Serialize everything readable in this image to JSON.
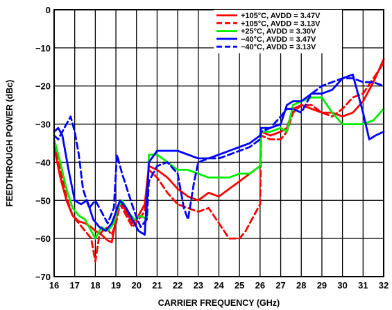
{
  "chart_data": {
    "type": "line",
    "xlabel": "CARRIER FREQUENCY (GHz)",
    "ylabel": "FEEDTHROUGH POWER (dBc)",
    "xlim": [
      16,
      32
    ],
    "ylim": [
      -70,
      0
    ],
    "xticks": [
      "16",
      "17",
      "18",
      "19",
      "20",
      "21",
      "22",
      "23",
      "24",
      "25",
      "26",
      "27",
      "28",
      "29",
      "30",
      "31",
      "32"
    ],
    "yticks": [
      "0",
      "−10",
      "−20",
      "−30",
      "−40",
      "−50",
      "−60",
      "−70"
    ],
    "grid": true,
    "legend_position": "top-right",
    "series": [
      {
        "name": "+105°C, AVDD = 3.47V",
        "color": "#ff0000",
        "dash": "solid",
        "points": [
          [
            16,
            -36
          ],
          [
            16.3,
            -44
          ],
          [
            16.6,
            -50
          ],
          [
            16.9,
            -54
          ],
          [
            17.2,
            -55.5
          ],
          [
            17.5,
            -56
          ],
          [
            17.8,
            -57
          ],
          [
            18,
            -58
          ],
          [
            18.3,
            -59
          ],
          [
            18.6,
            -60.5
          ],
          [
            18.8,
            -61
          ],
          [
            19,
            -55
          ],
          [
            19.2,
            -50
          ],
          [
            19.5,
            -53
          ],
          [
            19.8,
            -56
          ],
          [
            20.1,
            -54
          ],
          [
            20.4,
            -51
          ],
          [
            20.6,
            -41
          ],
          [
            21,
            -42
          ],
          [
            21.5,
            -44
          ],
          [
            22,
            -47
          ],
          [
            22.5,
            -49
          ],
          [
            23,
            -50
          ],
          [
            23.5,
            -48
          ],
          [
            24,
            -49
          ],
          [
            24.5,
            -47
          ],
          [
            25,
            -45
          ],
          [
            25.5,
            -43
          ],
          [
            26,
            -41
          ],
          [
            26.05,
            -32
          ],
          [
            26.5,
            -33
          ],
          [
            27,
            -32
          ],
          [
            27.3,
            -31
          ],
          [
            27.6,
            -26
          ],
          [
            28,
            -25
          ],
          [
            28.5,
            -26
          ],
          [
            29,
            -27
          ],
          [
            29.5,
            -27
          ],
          [
            30,
            -28
          ],
          [
            30.5,
            -27
          ],
          [
            31,
            -24
          ],
          [
            31.5,
            -19
          ],
          [
            32,
            -13
          ]
        ]
      },
      {
        "name": "+105°C, AVDD = 3.13V",
        "color": "#ff0000",
        "dash": "dashed",
        "points": [
          [
            16,
            -35
          ],
          [
            16.3,
            -42
          ],
          [
            16.6,
            -49
          ],
          [
            16.9,
            -54
          ],
          [
            17.2,
            -56
          ],
          [
            17.5,
            -58
          ],
          [
            17.8,
            -60
          ],
          [
            18,
            -66
          ],
          [
            18.2,
            -59
          ],
          [
            18.5,
            -57
          ],
          [
            18.8,
            -59
          ],
          [
            19,
            -56
          ],
          [
            19.2,
            -51
          ],
          [
            19.5,
            -54
          ],
          [
            19.8,
            -57
          ],
          [
            20.1,
            -55
          ],
          [
            20.4,
            -53
          ],
          [
            20.6,
            -42
          ],
          [
            21,
            -44
          ],
          [
            21.5,
            -48
          ],
          [
            22,
            -51
          ],
          [
            22.5,
            -52
          ],
          [
            23,
            -53
          ],
          [
            23.5,
            -52
          ],
          [
            24,
            -56
          ],
          [
            24.5,
            -60
          ],
          [
            25,
            -60
          ],
          [
            25.3,
            -58
          ],
          [
            25.6,
            -55
          ],
          [
            26,
            -51
          ],
          [
            26.05,
            -33
          ],
          [
            26.5,
            -34
          ],
          [
            27,
            -34
          ],
          [
            27.3,
            -32
          ],
          [
            27.6,
            -27
          ],
          [
            28,
            -25
          ],
          [
            28.5,
            -25
          ],
          [
            29,
            -27
          ],
          [
            29.5,
            -28
          ],
          [
            30,
            -26
          ],
          [
            30.5,
            -23
          ],
          [
            31,
            -22
          ],
          [
            31.5,
            -18
          ],
          [
            32,
            -14
          ]
        ]
      },
      {
        "name": "+25°C, AVDD = 3.30V",
        "color": "#00ee00",
        "dash": "solid",
        "points": [
          [
            16,
            -34
          ],
          [
            16.3,
            -40
          ],
          [
            16.6,
            -47
          ],
          [
            16.9,
            -52
          ],
          [
            17.2,
            -54
          ],
          [
            17.5,
            -55
          ],
          [
            17.8,
            -58
          ],
          [
            18,
            -60
          ],
          [
            18.3,
            -57
          ],
          [
            18.6,
            -58
          ],
          [
            18.9,
            -56
          ],
          [
            19.1,
            -52
          ],
          [
            19.3,
            -50
          ],
          [
            19.6,
            -53
          ],
          [
            19.9,
            -55
          ],
          [
            20.2,
            -54
          ],
          [
            20.5,
            -55
          ],
          [
            20.6,
            -38
          ],
          [
            21,
            -38
          ],
          [
            21.5,
            -40
          ],
          [
            22,
            -42
          ],
          [
            22.5,
            -42
          ],
          [
            23,
            -43
          ],
          [
            23.5,
            -44
          ],
          [
            24,
            -44
          ],
          [
            24.5,
            -44
          ],
          [
            25,
            -43
          ],
          [
            25.5,
            -43
          ],
          [
            26,
            -41
          ],
          [
            26.05,
            -32
          ],
          [
            26.5,
            -32
          ],
          [
            27,
            -31
          ],
          [
            27.3,
            -32
          ],
          [
            27.6,
            -25
          ],
          [
            28,
            -24
          ],
          [
            28.5,
            -23
          ],
          [
            29,
            -23
          ],
          [
            29.5,
            -27
          ],
          [
            30,
            -30
          ],
          [
            30.5,
            -30
          ],
          [
            31,
            -30
          ],
          [
            31.5,
            -29
          ],
          [
            32,
            -26
          ]
        ]
      },
      {
        "name": "−40°C, AVDD = 3.47V",
        "color": "#0000ff",
        "dash": "solid",
        "points": [
          [
            16,
            -32
          ],
          [
            16.2,
            -31
          ],
          [
            16.4,
            -33
          ],
          [
            16.7,
            -42
          ],
          [
            17,
            -50
          ],
          [
            17.3,
            -51
          ],
          [
            17.6,
            -50
          ],
          [
            17.9,
            -55
          ],
          [
            18.2,
            -57
          ],
          [
            18.5,
            -58
          ],
          [
            18.8,
            -56
          ],
          [
            19,
            -53
          ],
          [
            19.2,
            -50
          ],
          [
            19.5,
            -52
          ],
          [
            19.8,
            -55
          ],
          [
            20.1,
            -58
          ],
          [
            20.4,
            -59
          ],
          [
            20.6,
            -40
          ],
          [
            21,
            -37
          ],
          [
            21.5,
            -37
          ],
          [
            22,
            -37
          ],
          [
            22.5,
            -38
          ],
          [
            23,
            -39
          ],
          [
            23.5,
            -39
          ],
          [
            24,
            -38
          ],
          [
            24.5,
            -37
          ],
          [
            25,
            -36
          ],
          [
            25.5,
            -35
          ],
          [
            26,
            -33
          ],
          [
            26.05,
            -31
          ],
          [
            26.5,
            -31
          ],
          [
            27,
            -30
          ],
          [
            27.3,
            -25
          ],
          [
            27.6,
            -24
          ],
          [
            28,
            -24
          ],
          [
            28.5,
            -22
          ],
          [
            29,
            -22
          ],
          [
            29.5,
            -21
          ],
          [
            30,
            -18
          ],
          [
            30.5,
            -17
          ],
          [
            31,
            -27
          ],
          [
            31.3,
            -34
          ],
          [
            31.6,
            -33
          ],
          [
            32,
            -32
          ]
        ]
      },
      {
        "name": "−40°C, AVDD = 3.13V",
        "color": "#0000ff",
        "dash": "dashed",
        "points": [
          [
            16,
            -33
          ],
          [
            16.2,
            -34
          ],
          [
            16.5,
            -31
          ],
          [
            16.8,
            -28
          ],
          [
            17,
            -32
          ],
          [
            17.2,
            -38
          ],
          [
            17.4,
            -47
          ],
          [
            17.7,
            -52
          ],
          [
            18,
            -50
          ],
          [
            18.3,
            -53
          ],
          [
            18.6,
            -56
          ],
          [
            18.9,
            -52
          ],
          [
            19.05,
            -38
          ],
          [
            19.3,
            -43
          ],
          [
            19.6,
            -48
          ],
          [
            19.9,
            -53
          ],
          [
            20.2,
            -57
          ],
          [
            20.5,
            -55
          ],
          [
            20.6,
            -45
          ],
          [
            21,
            -41
          ],
          [
            21.5,
            -40
          ],
          [
            22,
            -43
          ],
          [
            22.3,
            -52
          ],
          [
            22.5,
            -55
          ],
          [
            22.8,
            -45
          ],
          [
            23,
            -40
          ],
          [
            23.5,
            -39
          ],
          [
            24,
            -39
          ],
          [
            24.5,
            -38
          ],
          [
            25,
            -37
          ],
          [
            25.5,
            -36
          ],
          [
            26,
            -34
          ],
          [
            26.05,
            -32
          ],
          [
            26.5,
            -31
          ],
          [
            27,
            -28
          ],
          [
            27.3,
            -26
          ],
          [
            27.6,
            -26
          ],
          [
            28,
            -27
          ],
          [
            28.5,
            -22
          ],
          [
            29,
            -20
          ],
          [
            29.5,
            -19
          ],
          [
            30,
            -18
          ],
          [
            30.5,
            -18
          ],
          [
            31,
            -19
          ],
          [
            31.5,
            -19
          ],
          [
            32,
            -20
          ]
        ]
      }
    ]
  }
}
